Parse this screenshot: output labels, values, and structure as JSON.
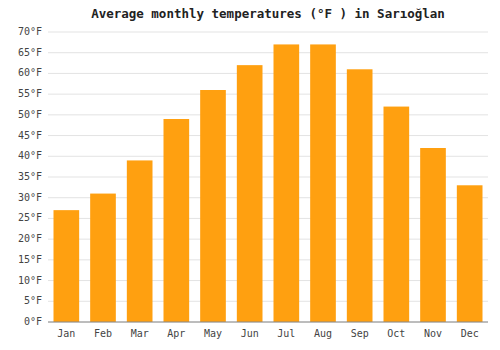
{
  "chart_data": {
    "type": "bar",
    "title": "Average monthly temperatures (°F ) in Sarıoğlan",
    "categories": [
      "Jan",
      "Feb",
      "Mar",
      "Apr",
      "May",
      "Jun",
      "Jul",
      "Aug",
      "Sep",
      "Oct",
      "Nov",
      "Dec"
    ],
    "values": [
      27,
      31,
      39,
      49,
      56,
      62,
      67,
      67,
      61,
      52,
      42,
      33
    ],
    "color": "#FFA010",
    "ylim": [
      0,
      70
    ],
    "yticks": [
      {
        "value": 0,
        "label": "0°F"
      },
      {
        "value": 5,
        "label": "5°F"
      },
      {
        "value": 10,
        "label": "10°F"
      },
      {
        "value": 15,
        "label": "15°F"
      },
      {
        "value": 20,
        "label": "20°F"
      },
      {
        "value": 25,
        "label": "25°F"
      },
      {
        "value": 30,
        "label": "30°F"
      },
      {
        "value": 35,
        "label": "35°F"
      },
      {
        "value": 40,
        "label": "40°F"
      },
      {
        "value": 45,
        "label": "45°F"
      },
      {
        "value": 50,
        "label": "50°F"
      },
      {
        "value": 55,
        "label": "55°F"
      },
      {
        "value": 60,
        "label": "60°F"
      },
      {
        "value": 65,
        "label": "65°F"
      },
      {
        "value": 70,
        "label": "70°F"
      }
    ],
    "grid": true
  }
}
